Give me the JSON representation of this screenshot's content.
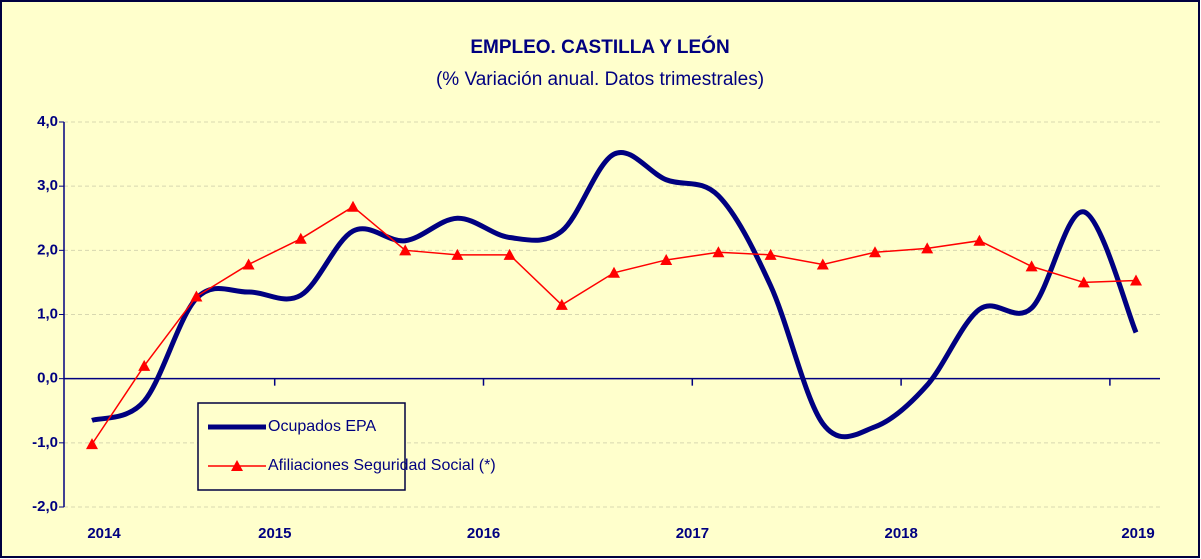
{
  "chart_data": {
    "type": "line",
    "title": "EMPLEO. CASTILLA Y LEÓN",
    "subtitle": "(% Variación anual. Datos trimestrales)",
    "categories": [
      "2014",
      null,
      null,
      null,
      "2015",
      null,
      null,
      null,
      "2016",
      null,
      null,
      null,
      "2017",
      null,
      null,
      null,
      "2018",
      null,
      null,
      null,
      "2019"
    ],
    "series": [
      {
        "name": "Ocupados EPA",
        "color": "#000080",
        "smooth": true,
        "values": [
          -0.65,
          -0.35,
          1.25,
          1.35,
          1.3,
          2.3,
          2.15,
          2.5,
          2.2,
          2.3,
          3.5,
          3.1,
          2.85,
          1.45,
          -0.7,
          -0.75,
          -0.1,
          1.08,
          1.1,
          2.6,
          0.72
        ]
      },
      {
        "name": "Afiliaciones Seguridad Social (*)",
        "color": "#ff0000",
        "marker": "triangle",
        "values": [
          -1.02,
          0.2,
          1.28,
          1.78,
          2.18,
          2.68,
          2.0,
          1.93,
          1.93,
          1.15,
          1.65,
          1.85,
          1.97,
          1.93,
          1.78,
          1.97,
          2.03,
          2.15,
          1.75,
          1.5,
          1.53
        ]
      }
    ],
    "ylim": [
      -2,
      4
    ],
    "yticks": [
      {
        "value": -2,
        "label": "-2,0"
      },
      {
        "value": -1,
        "label": "-1,0"
      },
      {
        "value": 0,
        "label": "0,0"
      },
      {
        "value": 1,
        "label": "1,0"
      },
      {
        "value": 2,
        "label": "2,0"
      },
      {
        "value": 3,
        "label": "3,0"
      },
      {
        "value": 4,
        "label": "4,0"
      }
    ],
    "grid": true
  }
}
